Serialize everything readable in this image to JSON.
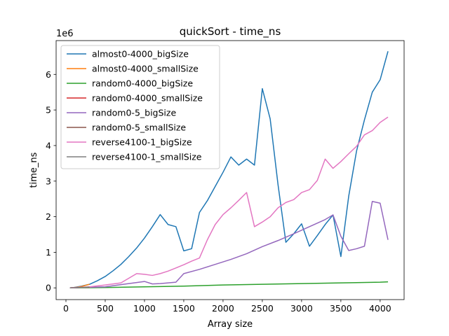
{
  "chart_data": {
    "type": "line",
    "title": "quickSort - time_ns",
    "xlabel": "Array size",
    "ylabel": "time_ns",
    "y_multiplier_label": "1e6",
    "xlim": [
      -125,
      4305
    ],
    "ylim": [
      -0.33,
      6.95
    ],
    "x_ticks": [
      0,
      500,
      1000,
      1500,
      2000,
      2500,
      3000,
      3500,
      4000
    ],
    "y_ticks": [
      0,
      1,
      2,
      3,
      4,
      5,
      6
    ],
    "grid": false,
    "legend_position": "top-left",
    "series": [
      {
        "name": "almost0-4000_bigSize",
        "color": "#1f77b4",
        "x": [
          50,
          100,
          200,
          300,
          400,
          500,
          600,
          700,
          800,
          900,
          1000,
          1100,
          1200,
          1300,
          1400,
          1500,
          1600,
          1700,
          1800,
          1900,
          2000,
          2100,
          2200,
          2300,
          2400,
          2500,
          2600,
          2700,
          2800,
          2900,
          3000,
          3100,
          3200,
          3300,
          3400,
          3500,
          3600,
          3700,
          3800,
          3900,
          4000,
          4100
        ],
        "values": [
          0,
          0.01,
          0.05,
          0.1,
          0.2,
          0.32,
          0.48,
          0.66,
          0.88,
          1.12,
          1.4,
          1.72,
          2.06,
          1.78,
          1.72,
          1.04,
          1.1,
          2.12,
          2.45,
          2.85,
          3.25,
          3.68,
          3.45,
          3.62,
          3.45,
          5.6,
          4.75,
          2.9,
          1.28,
          1.52,
          1.8,
          1.17,
          1.47,
          1.78,
          2.05,
          0.88,
          2.58,
          3.85,
          4.72,
          5.5,
          5.85,
          6.65
        ]
      },
      {
        "name": "almost0-4000_smallSize",
        "color": "#ff7f0e",
        "x": [
          50,
          100,
          150,
          200,
          250,
          300
        ],
        "values": [
          0,
          0.01,
          0.02,
          0.04,
          0.07,
          0.1
        ]
      },
      {
        "name": "random0-4000_bigSize",
        "color": "#2ca02c",
        "x": [
          50,
          500,
          1000,
          1500,
          2000,
          2500,
          3000,
          3500,
          4000,
          4100
        ],
        "values": [
          0,
          0.01,
          0.03,
          0.05,
          0.08,
          0.1,
          0.12,
          0.14,
          0.16,
          0.17
        ]
      },
      {
        "name": "random0-4000_smallSize",
        "color": "#d62728",
        "x": [
          50,
          100,
          150,
          200,
          250,
          300
        ],
        "values": [
          0,
          0.004,
          0.008,
          0.012,
          0.016,
          0.02
        ]
      },
      {
        "name": "random0-5_bigSize",
        "color": "#9467bd",
        "x": [
          50,
          500,
          700,
          800,
          900,
          1000,
          1100,
          1200,
          1300,
          1400,
          1500,
          1700,
          1900,
          2100,
          2300,
          2500,
          2700,
          2900,
          3100,
          3300,
          3400,
          3500,
          3600,
          3700,
          3800,
          3900,
          4000,
          4100
        ],
        "values": [
          0,
          0.03,
          0.09,
          0.12,
          0.15,
          0.18,
          0.11,
          0.12,
          0.14,
          0.16,
          0.4,
          0.52,
          0.66,
          0.8,
          0.96,
          1.16,
          1.33,
          1.52,
          1.72,
          1.92,
          2.05,
          1.45,
          1.05,
          1.1,
          1.17,
          2.43,
          2.38,
          1.35
        ]
      },
      {
        "name": "random0-5_smallSize",
        "color": "#8c564b",
        "x": [
          50,
          100,
          150,
          200,
          250,
          300
        ],
        "values": [
          0,
          0.003,
          0.006,
          0.009,
          0.012,
          0.015
        ]
      },
      {
        "name": "reverse4100-1_bigSize",
        "color": "#e377c2",
        "x": [
          50,
          300,
          500,
          700,
          800,
          900,
          1000,
          1100,
          1200,
          1300,
          1400,
          1500,
          1600,
          1700,
          1800,
          1900,
          2000,
          2100,
          2200,
          2300,
          2400,
          2500,
          2600,
          2700,
          2800,
          2900,
          3000,
          3100,
          3200,
          3300,
          3400,
          3500,
          3600,
          3700,
          3800,
          3900,
          4000,
          4100
        ],
        "values": [
          0,
          0.03,
          0.08,
          0.14,
          0.27,
          0.4,
          0.38,
          0.35,
          0.4,
          0.47,
          0.56,
          0.65,
          0.75,
          0.84,
          1.35,
          1.78,
          2.06,
          2.25,
          2.46,
          2.68,
          1.72,
          1.85,
          2.0,
          2.25,
          2.4,
          2.48,
          2.68,
          2.76,
          3.02,
          3.62,
          3.36,
          3.55,
          3.77,
          3.98,
          4.3,
          4.42,
          4.65,
          4.8
        ]
      },
      {
        "name": "reverse4100-1_smallSize",
        "color": "#7f7f7f",
        "x": [
          50,
          100,
          150,
          200,
          250,
          300
        ],
        "values": [
          0,
          0.004,
          0.008,
          0.012,
          0.018,
          0.024
        ]
      }
    ]
  }
}
